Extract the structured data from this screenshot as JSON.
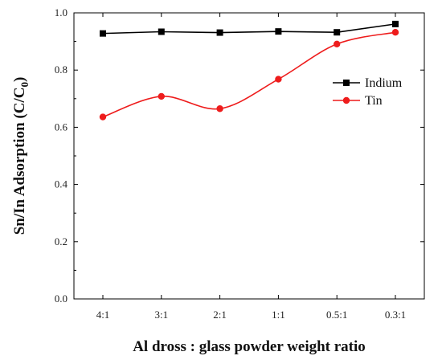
{
  "chart_data": {
    "type": "line",
    "title": "",
    "xlabel": "Al dross : glass powder weight ratio",
    "ylabel_main": "Sn/In Adsorption (C/C",
    "ylabel_sub": "0",
    "ylabel_end": ")",
    "categories": [
      "4:1",
      "3:1",
      "2:1",
      "1:1",
      "0.5:1",
      "0.3:1"
    ],
    "y_ticks": [
      "0.0",
      "0.2",
      "0.4",
      "0.6",
      "0.8",
      "1.0"
    ],
    "ylim": [
      0,
      1.0
    ],
    "grid": false,
    "legend_position": "right",
    "series": [
      {
        "name": "Indium",
        "color": "#000000",
        "marker": "square",
        "line": "straight",
        "values": [
          0.928,
          0.934,
          0.931,
          0.935,
          0.932,
          0.961
        ]
      },
      {
        "name": "Tin",
        "color": "#ee1c1c",
        "marker": "circle",
        "line": "smooth",
        "values": [
          0.636,
          0.708,
          0.665,
          0.768,
          0.891,
          0.932
        ]
      }
    ]
  }
}
